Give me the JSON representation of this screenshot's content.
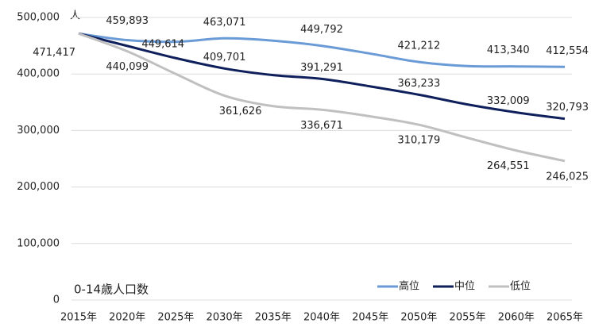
{
  "chart_data": {
    "type": "line",
    "title": "0-14歳人口数",
    "y_unit": "人",
    "categories": [
      "2015年",
      "2020年",
      "2025年",
      "2030年",
      "2035年",
      "2040年",
      "2045年",
      "2050年",
      "2055年",
      "2060年",
      "2065年"
    ],
    "series": [
      {
        "name": "高位",
        "color": "#6a9bd6",
        "values": [
          471417,
          459893,
          457000,
          463071,
          459000,
          449792,
          436000,
          421212,
          414000,
          413340,
          412554
        ],
        "value_labels": [
          null,
          "459,893",
          null,
          "463,071",
          null,
          "449,792",
          null,
          "421,212",
          null,
          "413,340",
          "412,554"
        ]
      },
      {
        "name": "中位",
        "color": "#0e1f5b",
        "values": [
          471417,
          449614,
          428000,
          409701,
          398000,
          391291,
          378000,
          363233,
          346000,
          332009,
          320793
        ],
        "value_labels": [
          "471,417",
          "449,614",
          null,
          "409,701",
          null,
          "391,291",
          null,
          "363,233",
          null,
          "332,009",
          "320,793"
        ]
      },
      {
        "name": "低位",
        "color": "#c0c0c0",
        "values": [
          471417,
          440099,
          400000,
          361626,
          343000,
          336671,
          325000,
          310179,
          287000,
          264551,
          246025
        ],
        "value_labels": [
          null,
          "440,099",
          null,
          "361,626",
          null,
          "336,671",
          null,
          "310,179",
          null,
          "264,551",
          "246,025"
        ]
      }
    ],
    "ylim": [
      0,
      500000
    ],
    "yticks": [
      0,
      {
        "value": 100000,
        "label": "100,000"
      },
      {
        "value": 200000,
        "label": "200,000"
      },
      {
        "value": 300000,
        "label": "300,000"
      },
      {
        "value": 400000,
        "label": "400,000"
      },
      {
        "value": 500000,
        "label": "500,000"
      }
    ],
    "grid": true,
    "legend": "bottom-right"
  }
}
